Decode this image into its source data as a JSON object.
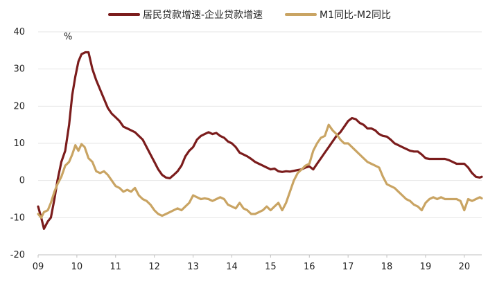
{
  "chart_data": {
    "type": "line",
    "unit_label": "%",
    "ylim": [
      -20,
      40
    ],
    "yticks": [
      -20,
      -10,
      0,
      10,
      20,
      30,
      40
    ],
    "xlim": [
      2009.0,
      2020.45
    ],
    "xticks": [
      {
        "value": 2009,
        "label": "09"
      },
      {
        "value": 2010,
        "label": "10"
      },
      {
        "value": 2011,
        "label": "11"
      },
      {
        "value": 2012,
        "label": "12"
      },
      {
        "value": 2013,
        "label": "13"
      },
      {
        "value": 2014,
        "label": "14"
      },
      {
        "value": 2015,
        "label": "15"
      },
      {
        "value": 2016,
        "label": "16"
      },
      {
        "value": 2017,
        "label": "17"
      },
      {
        "value": 2018,
        "label": "18"
      },
      {
        "value": 2019,
        "label": "19"
      },
      {
        "value": 2020,
        "label": "20"
      }
    ],
    "grid": true,
    "legend_position": "top",
    "series": [
      {
        "name": "居民贷款增速-企业贷款增速",
        "color": "#7b1c1c",
        "points": [
          [
            2009.0,
            -7
          ],
          [
            2009.08,
            -10
          ],
          [
            2009.15,
            -13
          ],
          [
            2009.25,
            -11
          ],
          [
            2009.33,
            -10
          ],
          [
            2009.42,
            -5
          ],
          [
            2009.5,
            0
          ],
          [
            2009.6,
            5
          ],
          [
            2009.7,
            8
          ],
          [
            2009.8,
            15
          ],
          [
            2009.88,
            23
          ],
          [
            2009.96,
            28
          ],
          [
            2010.04,
            32
          ],
          [
            2010.12,
            34
          ],
          [
            2010.22,
            34.5
          ],
          [
            2010.3,
            34.5
          ],
          [
            2010.4,
            30
          ],
          [
            2010.5,
            27
          ],
          [
            2010.6,
            24.5
          ],
          [
            2010.7,
            22
          ],
          [
            2010.8,
            19.5
          ],
          [
            2010.9,
            18
          ],
          [
            2011.0,
            17
          ],
          [
            2011.1,
            16
          ],
          [
            2011.2,
            14.5
          ],
          [
            2011.3,
            14
          ],
          [
            2011.4,
            13.5
          ],
          [
            2011.5,
            13
          ],
          [
            2011.6,
            12
          ],
          [
            2011.7,
            11
          ],
          [
            2011.8,
            9
          ],
          [
            2011.9,
            7
          ],
          [
            2012.0,
            5
          ],
          [
            2012.1,
            3
          ],
          [
            2012.2,
            1.5
          ],
          [
            2012.3,
            0.8
          ],
          [
            2012.4,
            0.6
          ],
          [
            2012.5,
            1.5
          ],
          [
            2012.6,
            2.5
          ],
          [
            2012.7,
            4
          ],
          [
            2012.8,
            6.5
          ],
          [
            2012.9,
            8
          ],
          [
            2013.0,
            9
          ],
          [
            2013.1,
            11
          ],
          [
            2013.2,
            12
          ],
          [
            2013.3,
            12.5
          ],
          [
            2013.4,
            13
          ],
          [
            2013.5,
            12.5
          ],
          [
            2013.6,
            12.8
          ],
          [
            2013.7,
            12
          ],
          [
            2013.8,
            11.5
          ],
          [
            2013.9,
            10.5
          ],
          [
            2014.0,
            10
          ],
          [
            2014.1,
            9
          ],
          [
            2014.2,
            7.5
          ],
          [
            2014.3,
            7
          ],
          [
            2014.4,
            6.5
          ],
          [
            2014.5,
            5.8
          ],
          [
            2014.6,
            5
          ],
          [
            2014.7,
            4.5
          ],
          [
            2014.8,
            4
          ],
          [
            2014.9,
            3.5
          ],
          [
            2015.0,
            3
          ],
          [
            2015.1,
            3.2
          ],
          [
            2015.2,
            2.5
          ],
          [
            2015.3,
            2.3
          ],
          [
            2015.4,
            2.5
          ],
          [
            2015.5,
            2.4
          ],
          [
            2015.6,
            2.6
          ],
          [
            2015.7,
            2.8
          ],
          [
            2015.8,
            3
          ],
          [
            2015.9,
            3.5
          ],
          [
            2016.0,
            3.8
          ],
          [
            2016.1,
            3
          ],
          [
            2016.2,
            4.5
          ],
          [
            2016.3,
            6
          ],
          [
            2016.4,
            7.5
          ],
          [
            2016.5,
            9
          ],
          [
            2016.6,
            10.5
          ],
          [
            2016.7,
            12
          ],
          [
            2016.8,
            13
          ],
          [
            2016.9,
            14.5
          ],
          [
            2017.0,
            16
          ],
          [
            2017.1,
            16.8
          ],
          [
            2017.2,
            16.5
          ],
          [
            2017.3,
            15.5
          ],
          [
            2017.4,
            15
          ],
          [
            2017.5,
            14
          ],
          [
            2017.6,
            14
          ],
          [
            2017.7,
            13.5
          ],
          [
            2017.8,
            12.5
          ],
          [
            2017.9,
            12
          ],
          [
            2018.0,
            11.8
          ],
          [
            2018.1,
            11
          ],
          [
            2018.2,
            10
          ],
          [
            2018.3,
            9.5
          ],
          [
            2018.4,
            9
          ],
          [
            2018.5,
            8.5
          ],
          [
            2018.6,
            8
          ],
          [
            2018.7,
            7.8
          ],
          [
            2018.8,
            7.8
          ],
          [
            2018.9,
            7
          ],
          [
            2019.0,
            6
          ],
          [
            2019.1,
            5.8
          ],
          [
            2019.2,
            5.8
          ],
          [
            2019.3,
            5.8
          ],
          [
            2019.4,
            5.8
          ],
          [
            2019.5,
            5.8
          ],
          [
            2019.6,
            5.5
          ],
          [
            2019.7,
            5
          ],
          [
            2019.8,
            4.5
          ],
          [
            2019.9,
            4.5
          ],
          [
            2020.0,
            4.5
          ],
          [
            2020.1,
            3.5
          ],
          [
            2020.2,
            2
          ],
          [
            2020.3,
            1
          ],
          [
            2020.4,
            0.8
          ],
          [
            2020.45,
            1
          ]
        ]
      },
      {
        "name": "M1同比-M2同比",
        "color": "#c9a463",
        "points": [
          [
            2009.0,
            -9
          ],
          [
            2009.08,
            -10
          ],
          [
            2009.15,
            -8.5
          ],
          [
            2009.25,
            -8
          ],
          [
            2009.33,
            -6
          ],
          [
            2009.42,
            -3
          ],
          [
            2009.5,
            -1
          ],
          [
            2009.6,
            1
          ],
          [
            2009.7,
            4
          ],
          [
            2009.8,
            5
          ],
          [
            2009.88,
            7
          ],
          [
            2009.96,
            9.5
          ],
          [
            2010.04,
            8
          ],
          [
            2010.12,
            9.8
          ],
          [
            2010.2,
            9
          ],
          [
            2010.3,
            6
          ],
          [
            2010.4,
            5
          ],
          [
            2010.5,
            2.5
          ],
          [
            2010.6,
            2
          ],
          [
            2010.7,
            2.5
          ],
          [
            2010.8,
            1.5
          ],
          [
            2010.9,
            0
          ],
          [
            2011.0,
            -1.5
          ],
          [
            2011.1,
            -2
          ],
          [
            2011.2,
            -3
          ],
          [
            2011.3,
            -2.5
          ],
          [
            2011.4,
            -3
          ],
          [
            2011.5,
            -2
          ],
          [
            2011.6,
            -4
          ],
          [
            2011.7,
            -5
          ],
          [
            2011.8,
            -5.5
          ],
          [
            2011.9,
            -6.5
          ],
          [
            2012.0,
            -8
          ],
          [
            2012.1,
            -9
          ],
          [
            2012.2,
            -9.5
          ],
          [
            2012.3,
            -9
          ],
          [
            2012.4,
            -8.5
          ],
          [
            2012.5,
            -8
          ],
          [
            2012.6,
            -7.5
          ],
          [
            2012.7,
            -8
          ],
          [
            2012.8,
            -7
          ],
          [
            2012.9,
            -6
          ],
          [
            2013.0,
            -4
          ],
          [
            2013.1,
            -4.5
          ],
          [
            2013.2,
            -5
          ],
          [
            2013.3,
            -4.8
          ],
          [
            2013.4,
            -5
          ],
          [
            2013.5,
            -5.5
          ],
          [
            2013.6,
            -5
          ],
          [
            2013.7,
            -4.5
          ],
          [
            2013.8,
            -5
          ],
          [
            2013.9,
            -6.5
          ],
          [
            2014.0,
            -7
          ],
          [
            2014.1,
            -7.5
          ],
          [
            2014.2,
            -6
          ],
          [
            2014.3,
            -7.5
          ],
          [
            2014.4,
            -8
          ],
          [
            2014.5,
            -9
          ],
          [
            2014.6,
            -9
          ],
          [
            2014.7,
            -8.5
          ],
          [
            2014.8,
            -8
          ],
          [
            2014.9,
            -7
          ],
          [
            2015.0,
            -8
          ],
          [
            2015.1,
            -7
          ],
          [
            2015.2,
            -6
          ],
          [
            2015.3,
            -8
          ],
          [
            2015.4,
            -6
          ],
          [
            2015.5,
            -3
          ],
          [
            2015.6,
            0
          ],
          [
            2015.7,
            2
          ],
          [
            2015.8,
            3
          ],
          [
            2015.9,
            4
          ],
          [
            2016.0,
            4.5
          ],
          [
            2016.1,
            8
          ],
          [
            2016.2,
            10
          ],
          [
            2016.3,
            11.5
          ],
          [
            2016.4,
            12
          ],
          [
            2016.5,
            15
          ],
          [
            2016.6,
            13.5
          ],
          [
            2016.7,
            12.5
          ],
          [
            2016.8,
            11
          ],
          [
            2016.9,
            10
          ],
          [
            2017.0,
            10
          ],
          [
            2017.1,
            9
          ],
          [
            2017.2,
            8
          ],
          [
            2017.3,
            7
          ],
          [
            2017.4,
            6
          ],
          [
            2017.5,
            5
          ],
          [
            2017.6,
            4.5
          ],
          [
            2017.7,
            4
          ],
          [
            2017.8,
            3.5
          ],
          [
            2017.9,
            1
          ],
          [
            2018.0,
            -1
          ],
          [
            2018.1,
            -1.5
          ],
          [
            2018.2,
            -2
          ],
          [
            2018.3,
            -3
          ],
          [
            2018.4,
            -4
          ],
          [
            2018.5,
            -5
          ],
          [
            2018.6,
            -5.5
          ],
          [
            2018.7,
            -6.5
          ],
          [
            2018.8,
            -7
          ],
          [
            2018.9,
            -8
          ],
          [
            2019.0,
            -6
          ],
          [
            2019.1,
            -5
          ],
          [
            2019.2,
            -4.5
          ],
          [
            2019.3,
            -5
          ],
          [
            2019.4,
            -4.5
          ],
          [
            2019.5,
            -5
          ],
          [
            2019.6,
            -5
          ],
          [
            2019.7,
            -5
          ],
          [
            2019.8,
            -5
          ],
          [
            2019.9,
            -5.5
          ],
          [
            2020.0,
            -8
          ],
          [
            2020.1,
            -5
          ],
          [
            2020.2,
            -5.5
          ],
          [
            2020.3,
            -5
          ],
          [
            2020.4,
            -4.5
          ],
          [
            2020.45,
            -4.8
          ]
        ]
      }
    ]
  }
}
